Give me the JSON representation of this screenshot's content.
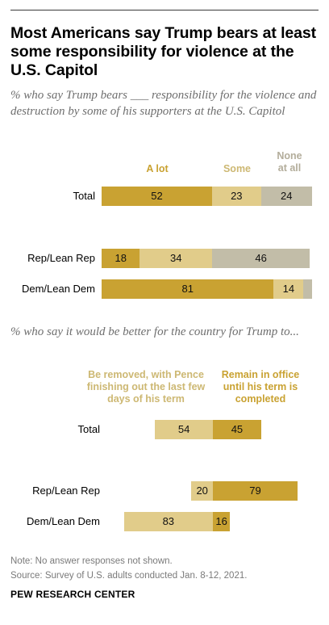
{
  "title": "Most Americans say Trump bears at least some responsibility for violence at the U.S. Capitol",
  "notes": {
    "note": "Note: No answer responses not shown.",
    "source": "Source: Survey of U.S. adults conducted Jan. 8-12, 2021.",
    "brand": "PEW RESEARCH CENTER"
  },
  "colors": {
    "dark_gold": "#c9a232",
    "light_gold": "#e1cc8a",
    "gray": "#c2bda8",
    "header_light": "#cdb873",
    "header_gray": "#b3ad9b"
  },
  "chart_data": [
    {
      "type": "bar",
      "orientation": "horizontal",
      "stacked": true,
      "subtitle": "% who say Trump bears ___ responsibility for the violence and destruction by some of his supporters at the U.S. Capitol",
      "categories": [
        "Total",
        "Rep/Lean Rep",
        "Dem/Lean Dem"
      ],
      "series": [
        {
          "name": "A lot",
          "values": [
            52,
            18,
            81
          ]
        },
        {
          "name": "Some",
          "values": [
            23,
            34,
            14
          ]
        },
        {
          "name": "None at all",
          "values": [
            24,
            46,
            4
          ]
        }
      ],
      "xlim": [
        0,
        100
      ]
    },
    {
      "type": "bar",
      "orientation": "horizontal",
      "diverging": true,
      "subtitle": "% who say it would be better for the country for Trump to...",
      "categories": [
        "Total",
        "Rep/Lean Rep",
        "Dem/Lean Dem"
      ],
      "series": [
        {
          "name": "Be removed, with Pence finishing out the last few days of his term",
          "values": [
            54,
            20,
            83
          ]
        },
        {
          "name": "Remain in office until his term is completed",
          "values": [
            45,
            79,
            16
          ]
        }
      ],
      "xlim": [
        -100,
        100
      ]
    }
  ]
}
